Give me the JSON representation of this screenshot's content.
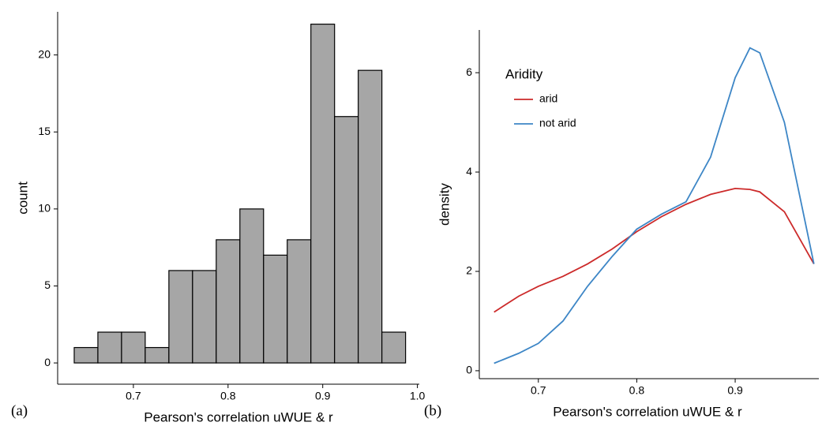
{
  "chart_data": [
    {
      "type": "histogram",
      "panel_label": "(a)",
      "x_label": "Pearson's correlation uWUE & r",
      "y_label": "count",
      "bins": [
        0.6375,
        0.6625,
        0.6875,
        0.7125,
        0.7375,
        0.7625,
        0.7875,
        0.8125,
        0.8375,
        0.8625,
        0.8875,
        0.9125,
        0.9375,
        0.9625,
        0.9875
      ],
      "values": [
        1,
        2,
        2,
        1,
        6,
        6,
        8,
        10,
        7,
        8,
        22,
        16,
        19,
        2
      ],
      "color": "#a6a6a6",
      "xlim": [
        0.62,
        1.002
      ],
      "ylim": [
        -1.38,
        22.8
      ],
      "xticks": [
        0.7,
        0.8,
        0.9,
        {
          "value": 1,
          "label": "1.0"
        }
      ],
      "yticks": [
        0,
        5,
        10,
        15,
        20
      ],
      "grid": false
    },
    {
      "type": "line",
      "panel_label": "(b)",
      "x_label": "Pearson's correlation uWUE & r",
      "y_label": "density",
      "legend_title": "Aridity",
      "legend": "top-left",
      "x": [
        0.655,
        0.68,
        0.7,
        0.725,
        0.75,
        0.775,
        0.8,
        0.825,
        0.85,
        0.875,
        0.9,
        0.915,
        0.925,
        0.95,
        0.98
      ],
      "series": [
        {
          "name": "arid",
          "color": "#cc2a2a",
          "values": [
            1.18,
            1.5,
            1.7,
            1.9,
            2.15,
            2.45,
            2.8,
            3.1,
            3.35,
            3.55,
            3.67,
            3.65,
            3.6,
            3.2,
            2.15
          ]
        },
        {
          "name": "not arid",
          "color": "#3d86c6",
          "values": [
            0.15,
            0.35,
            0.55,
            1.0,
            1.7,
            2.3,
            2.85,
            3.15,
            3.4,
            4.3,
            5.9,
            6.5,
            6.4,
            5.0,
            2.15
          ]
        }
      ],
      "xlim": [
        0.64,
        0.985
      ],
      "ylim": [
        -0.16,
        6.86
      ],
      "xticks": [
        0.7,
        0.8,
        0.9
      ],
      "yticks": [
        0,
        2,
        4,
        6
      ],
      "grid": false
    }
  ]
}
